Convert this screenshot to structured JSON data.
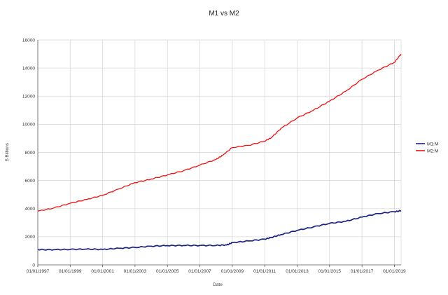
{
  "chart_data": {
    "type": "line",
    "title": "M1 vs M2",
    "xlabel": "Date",
    "ylabel": "$ Billions",
    "ylim": [
      0,
      16000
    ],
    "xlim": [
      "1997-01-01",
      "2019-06-01"
    ],
    "yticks": [
      "0",
      "2000",
      "4000",
      "6000",
      "8000",
      "10000",
      "12000",
      "14000",
      "16000"
    ],
    "xticks": [
      "01/01/1997",
      "01/01/1999",
      "01/01/2001",
      "01/01/2003",
      "01/01/2005",
      "01/01/2007",
      "01/01/2009",
      "01/01/2011",
      "01/01/2013",
      "01/01/2015",
      "01/01/2017",
      "01/01/2019"
    ],
    "grid": true,
    "legend_position": "right",
    "series": [
      {
        "name": "M1:M",
        "color": "#1a237e",
        "x": [
          "1997-01-01",
          "1998-01-01",
          "1999-01-01",
          "2000-01-01",
          "2001-01-01",
          "2002-01-01",
          "2003-01-01",
          "2004-01-01",
          "2005-01-01",
          "2006-01-01",
          "2007-01-01",
          "2008-01-01",
          "2008-09-01",
          "2009-01-01",
          "2010-01-01",
          "2011-01-01",
          "2011-06-01",
          "2012-01-01",
          "2013-01-01",
          "2014-01-01",
          "2015-01-01",
          "2016-01-01",
          "2017-01-01",
          "2018-01-01",
          "2019-01-01",
          "2019-06-01"
        ],
        "values": [
          1080,
          1080,
          1100,
          1120,
          1100,
          1180,
          1240,
          1330,
          1370,
          1380,
          1380,
          1380,
          1420,
          1580,
          1700,
          1830,
          1950,
          2150,
          2450,
          2700,
          2950,
          3100,
          3400,
          3650,
          3780,
          3850
        ]
      },
      {
        "name": "M2:M",
        "color": "#ee1111",
        "x": [
          "1997-01-01",
          "1998-01-01",
          "1999-01-01",
          "2000-01-01",
          "2001-01-01",
          "2002-01-01",
          "2003-01-01",
          "2004-01-01",
          "2005-01-01",
          "2006-01-01",
          "2007-01-01",
          "2008-01-01",
          "2008-06-01",
          "2009-01-01",
          "2010-01-01",
          "2011-01-01",
          "2011-06-01",
          "2012-01-01",
          "2013-01-01",
          "2014-01-01",
          "2015-01-01",
          "2016-01-01",
          "2017-01-01",
          "2018-01-01",
          "2019-01-01",
          "2019-06-01"
        ],
        "values": [
          3820,
          4050,
          4380,
          4650,
          4950,
          5400,
          5850,
          6100,
          6400,
          6700,
          7100,
          7500,
          7800,
          8350,
          8500,
          8800,
          9050,
          9700,
          10450,
          11000,
          11650,
          12350,
          13200,
          13850,
          14400,
          15000
        ]
      }
    ]
  }
}
